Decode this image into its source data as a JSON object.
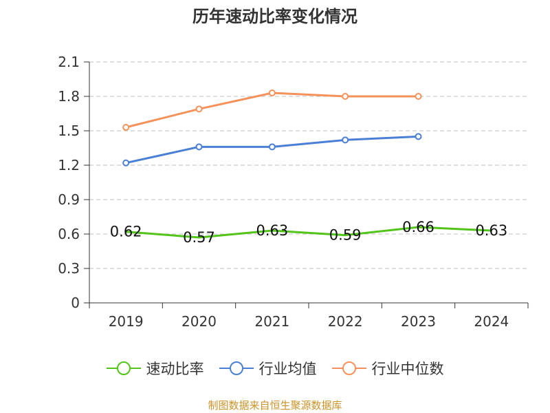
{
  "title": "历年速动比率变化情况",
  "source": "制图数据来自恒生聚源数据库",
  "chart_data": {
    "type": "line",
    "title": "历年速动比率变化情况",
    "categories": [
      "2019",
      "2020",
      "2021",
      "2022",
      "2023",
      "2024"
    ],
    "ylim": [
      0,
      2.1
    ],
    "yticks": [
      "0",
      "0.3",
      "0.6",
      "0.9",
      "1.2",
      "1.5",
      "1.8",
      "2.1"
    ],
    "grid": true,
    "legend_position": "bottom",
    "series": [
      {
        "name": "速动比率",
        "color": "#52c41a",
        "values": [
          0.62,
          0.57,
          0.63,
          0.59,
          0.66,
          0.63
        ],
        "labels": [
          "0.62",
          "0.57",
          "0.63",
          "0.59",
          "0.66",
          "0.63"
        ],
        "markers": false
      },
      {
        "name": "行业均值",
        "color": "#4a7fd6",
        "values": [
          1.22,
          1.36,
          1.36,
          1.42,
          1.45,
          null
        ],
        "markers": true
      },
      {
        "name": "行业中位数",
        "color": "#f5915a",
        "values": [
          1.53,
          1.69,
          1.83,
          1.8,
          1.8,
          null
        ],
        "markers": true
      }
    ]
  }
}
